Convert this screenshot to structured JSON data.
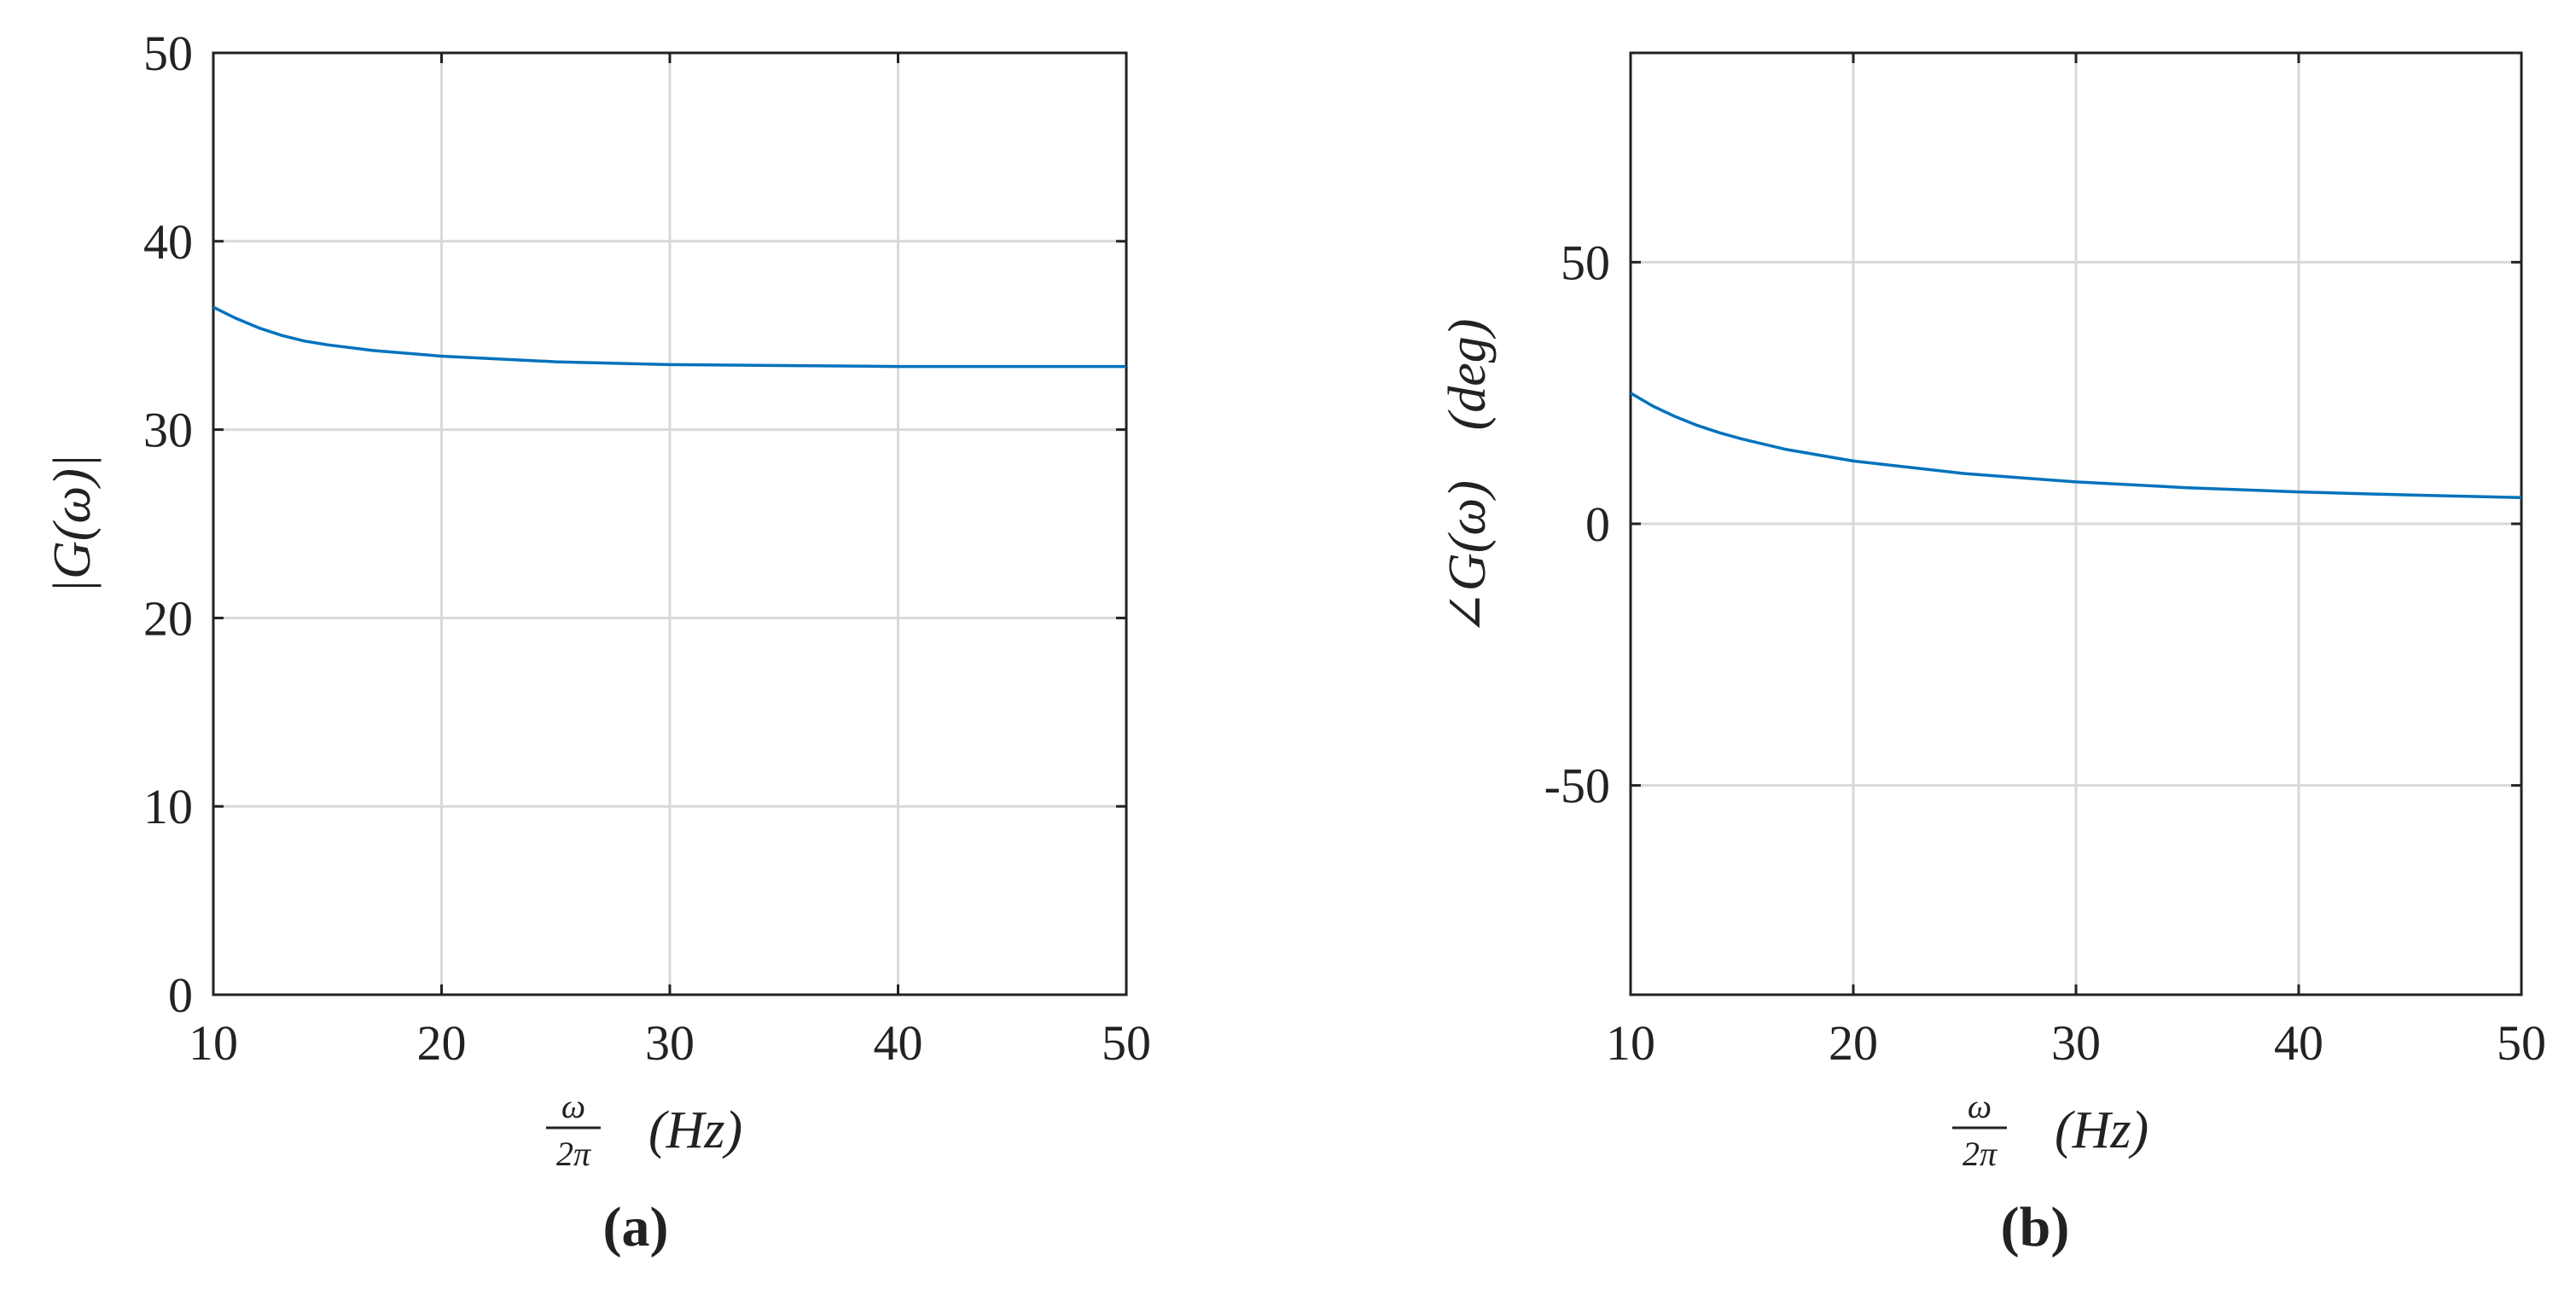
{
  "chart_data": [
    {
      "type": "line",
      "panel_label": "(a)",
      "ylabel": "|G(ω)|",
      "xlabel": {
        "frac_num": "ω",
        "frac_den": "2π",
        "unit": "(Hz)"
      },
      "xlim": [
        10,
        50
      ],
      "ylim": [
        0,
        50
      ],
      "xticks": [
        10,
        20,
        30,
        40,
        50
      ],
      "xtick_labels": [
        "10",
        "20",
        "30",
        "40",
        "50"
      ],
      "yticks": [
        0,
        10,
        20,
        30,
        40,
        50
      ],
      "ytick_labels": [
        "0",
        "10",
        "20",
        "30",
        "40",
        "50"
      ],
      "grid": true,
      "line_color": "#0072BD",
      "series": [
        {
          "x": [
            10,
            11,
            12,
            13,
            14,
            15,
            17,
            20,
            25,
            30,
            35,
            40,
            45,
            50
          ],
          "y": [
            36.5,
            35.9,
            35.4,
            35.0,
            34.7,
            34.5,
            34.2,
            33.9,
            33.6,
            33.45,
            33.4,
            33.35,
            33.35,
            33.35
          ]
        }
      ]
    },
    {
      "type": "line",
      "panel_label": "(b)",
      "ylabel": "∠G(ω)",
      "ylabel_unit": "(deg)",
      "xlabel": {
        "frac_num": "ω",
        "frac_den": "2π",
        "unit": "(Hz)"
      },
      "xlim": [
        10,
        50
      ],
      "ylim": [
        -90,
        90
      ],
      "xticks": [
        10,
        20,
        30,
        40,
        50
      ],
      "xtick_labels": [
        "10",
        "20",
        "30",
        "40",
        "50"
      ],
      "yticks": [
        -50,
        0,
        50
      ],
      "ytick_labels": [
        "-50",
        "0",
        "50"
      ],
      "grid": true,
      "line_color": "#0072BD",
      "series": [
        {
          "x": [
            10,
            11,
            12,
            13,
            14,
            15,
            17,
            20,
            25,
            30,
            35,
            40,
            45,
            50
          ],
          "y": [
            25,
            22.5,
            20.5,
            18.8,
            17.4,
            16.2,
            14.2,
            12.0,
            9.6,
            8.0,
            6.9,
            6.1,
            5.5,
            5.0
          ]
        }
      ]
    }
  ]
}
